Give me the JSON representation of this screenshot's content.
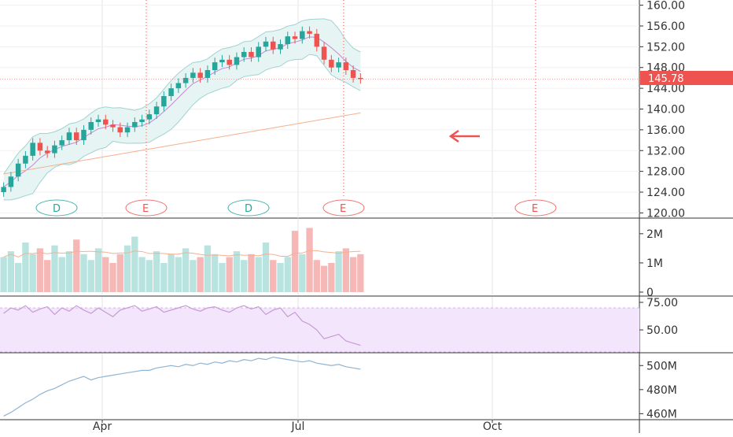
{
  "colors": {
    "up": "#26a69a",
    "down": "#ef5350",
    "band_fill": "#e6f4f4",
    "band_line": "#9fd4d2",
    "sma_short": "#c58ad6",
    "sma_long": "#f6b08d",
    "rsi_band": "#f3e5fb",
    "rsi_line": "#c89ad6",
    "obv_line": "#8fb4d4",
    "grid": "#e3e3e3",
    "axis": "#333333",
    "last_price_bg": "#ef5350",
    "earnings": "#ef5350",
    "dividend": "#26a69a"
  },
  "icons": {
    "arrow": "left-arrow-icon"
  },
  "chart_data": {
    "type": "candlestick",
    "last_price": "145.78",
    "x_axis_labels": [
      "Apr",
      "Jul",
      "Oct"
    ],
    "price_panel": {
      "ticks": [
        "160.00",
        "156.00",
        "152.00",
        "148.00",
        "144.00",
        "140.00",
        "136.00",
        "132.00",
        "128.00",
        "124.00",
        "120.00"
      ],
      "ylim": [
        119,
        161
      ],
      "closes": [
        125.0,
        127.0,
        129.5,
        131.0,
        133.5,
        132.0,
        131.5,
        133.0,
        134.0,
        135.5,
        134.0,
        136.0,
        137.5,
        138.0,
        137.0,
        136.5,
        135.5,
        136.5,
        137.5,
        138.0,
        139.0,
        140.5,
        142.5,
        144.0,
        145.0,
        146.0,
        147.0,
        146.0,
        147.5,
        149.0,
        149.5,
        148.5,
        150.0,
        151.0,
        150.0,
        152.0,
        153.0,
        151.5,
        152.5,
        154.0,
        153.5,
        155.0,
        154.5,
        152.0,
        149.5,
        148.0,
        149.0,
        147.5,
        146.0,
        145.78
      ],
      "markers": [
        {
          "label": "D",
          "kind": "dividend",
          "date_index": 7
        },
        {
          "label": "E",
          "kind": "earnings",
          "date_index": 18
        },
        {
          "label": "D",
          "kind": "dividend",
          "date_index": 30
        },
        {
          "label": "E",
          "kind": "earnings",
          "date_index": 43
        },
        {
          "label": "E",
          "kind": "earnings",
          "date_index": 66
        }
      ]
    },
    "volume_panel": {
      "ticks": [
        "2M",
        "1M",
        "0"
      ],
      "ylim": [
        0,
        2.4
      ],
      "values": [
        1.2,
        1.4,
        1.0,
        1.7,
        1.3,
        1.5,
        1.1,
        1.6,
        1.2,
        1.4,
        1.8,
        1.3,
        1.1,
        1.5,
        1.2,
        1.0,
        1.3,
        1.6,
        1.9,
        1.2,
        1.1,
        1.4,
        1.0,
        1.3,
        1.2,
        1.5,
        1.1,
        1.2,
        1.6,
        1.3,
        1.0,
        1.2,
        1.4,
        1.1,
        1.3,
        1.2,
        1.7,
        1.1,
        1.0,
        1.2,
        2.1,
        1.3,
        2.2,
        1.1,
        0.9,
        1.0,
        1.4,
        1.5,
        1.2,
        1.3
      ]
    },
    "rsi_panel": {
      "ticks": [
        "75.00",
        "50.00"
      ],
      "ylim": [
        30,
        80
      ],
      "band": [
        30,
        70
      ],
      "values": [
        65,
        70,
        68,
        72,
        66,
        69,
        71,
        64,
        70,
        67,
        72,
        68,
        65,
        70,
        66,
        62,
        68,
        70,
        72,
        67,
        69,
        71,
        66,
        68,
        70,
        72,
        69,
        67,
        70,
        71,
        68,
        66,
        70,
        72,
        69,
        71,
        64,
        68,
        70,
        62,
        66,
        58,
        55,
        50,
        42,
        44,
        46,
        40,
        38,
        36
      ]
    },
    "obv_panel": {
      "ticks": [
        "500M",
        "480M",
        "460M"
      ],
      "ylim": [
        455,
        510
      ],
      "values": [
        458,
        461,
        465,
        469,
        472,
        476,
        479,
        481,
        484,
        487,
        489,
        491,
        488,
        490,
        491,
        492,
        493,
        494,
        495,
        496,
        496,
        498,
        499,
        500,
        499,
        501,
        500,
        502,
        501,
        503,
        502,
        504,
        503,
        505,
        504,
        506,
        505,
        507,
        506,
        505,
        504,
        503,
        504,
        502,
        501,
        500,
        501,
        499,
        498,
        497
      ]
    }
  }
}
